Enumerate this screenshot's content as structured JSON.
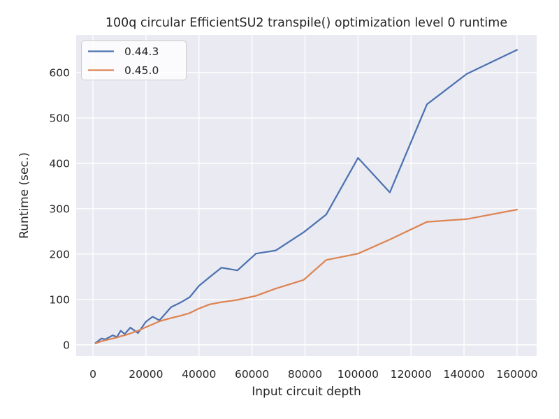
{
  "figure": {
    "title": "100q circular EfficientSU2 transpile() optimization level 0 runtime"
  },
  "chart_data": {
    "type": "line",
    "title": "100q circular EfficientSU2 transpile() optimization level 0 runtime",
    "xlabel": "Input circuit depth",
    "ylabel": "Runtime (sec.)",
    "xlim": [
      -6330,
      167390
    ],
    "ylim": [
      -25,
      683
    ],
    "xticks": [
      0,
      20000,
      40000,
      60000,
      80000,
      100000,
      120000,
      140000,
      160000
    ],
    "yticks": [
      0,
      100,
      200,
      300,
      400,
      500,
      600
    ],
    "grid": true,
    "grid_color": "#ffffff",
    "background_color": "#eaeaf2",
    "text_color": "#262626",
    "legend_position": "upper left",
    "x": [
      1000,
      3200,
      4600,
      7500,
      9000,
      10500,
      12000,
      14100,
      17000,
      20000,
      22500,
      25100,
      29500,
      33000,
      36500,
      40000,
      44000,
      48500,
      54500,
      61500,
      69000,
      79500,
      88000,
      100000,
      112000,
      126000,
      141000,
      160000
    ],
    "series": [
      {
        "name": "0.44.3",
        "color": "#4c72b0",
        "y": [
          4,
          14,
          12,
          21,
          17,
          31,
          24,
          38,
          26,
          51,
          62,
          54,
          83,
          93,
          105,
          130,
          149,
          170,
          164,
          201,
          208,
          248,
          287,
          412,
          336,
          530,
          597,
          650
        ]
      },
      {
        "name": "0.45.0",
        "color": "#dd8452",
        "y": [
          3,
          8,
          10,
          14,
          16,
          19,
          21,
          25,
          31,
          39,
          45,
          52,
          59,
          64,
          70,
          80,
          89,
          94,
          99,
          108,
          124,
          143,
          187,
          201,
          232,
          271,
          277,
          298
        ]
      }
    ],
    "legend": {
      "labels": [
        "0.44.3",
        "0.45.0"
      ],
      "border_color": "#cccccc",
      "fill_color": "#ffffff"
    }
  }
}
